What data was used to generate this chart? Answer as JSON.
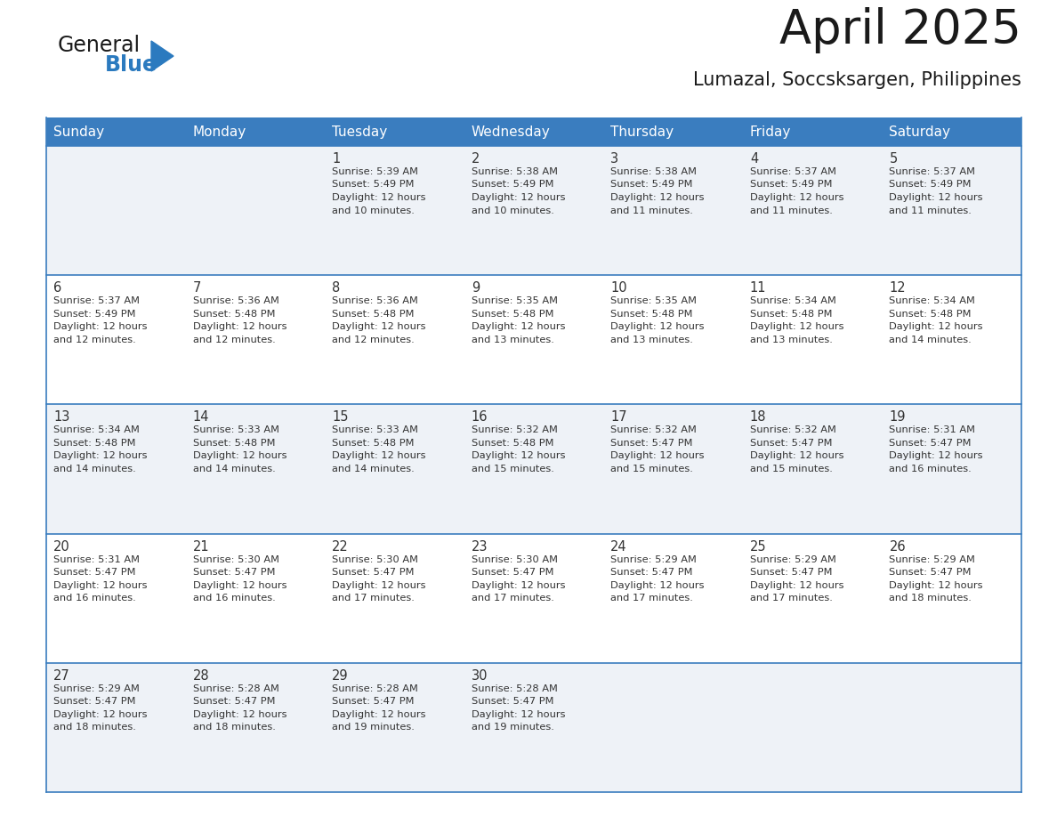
{
  "title": "April 2025",
  "subtitle": "Lumazal, Soccsksargen, Philippines",
  "header_bg": "#3a7dbf",
  "header_text": "#ffffff",
  "row_bg_odd": "#eef2f7",
  "row_bg_even": "#ffffff",
  "row_line_color": "#3a7dbf",
  "text_color": "#333333",
  "days_of_week": [
    "Sunday",
    "Monday",
    "Tuesday",
    "Wednesday",
    "Thursday",
    "Friday",
    "Saturday"
  ],
  "logo_general_color": "#1a1a1a",
  "logo_blue_color": "#2b7abf",
  "calendar_data": [
    [
      {
        "day": "",
        "sunrise": "",
        "sunset": "",
        "daylight": ""
      },
      {
        "day": "",
        "sunrise": "",
        "sunset": "",
        "daylight": ""
      },
      {
        "day": "1",
        "sunrise": "5:39 AM",
        "sunset": "5:49 PM",
        "daylight": "12 hours and 10 minutes."
      },
      {
        "day": "2",
        "sunrise": "5:38 AM",
        "sunset": "5:49 PM",
        "daylight": "12 hours and 10 minutes."
      },
      {
        "day": "3",
        "sunrise": "5:38 AM",
        "sunset": "5:49 PM",
        "daylight": "12 hours and 11 minutes."
      },
      {
        "day": "4",
        "sunrise": "5:37 AM",
        "sunset": "5:49 PM",
        "daylight": "12 hours and 11 minutes."
      },
      {
        "day": "5",
        "sunrise": "5:37 AM",
        "sunset": "5:49 PM",
        "daylight": "12 hours and 11 minutes."
      }
    ],
    [
      {
        "day": "6",
        "sunrise": "5:37 AM",
        "sunset": "5:49 PM",
        "daylight": "12 hours and 12 minutes."
      },
      {
        "day": "7",
        "sunrise": "5:36 AM",
        "sunset": "5:48 PM",
        "daylight": "12 hours and 12 minutes."
      },
      {
        "day": "8",
        "sunrise": "5:36 AM",
        "sunset": "5:48 PM",
        "daylight": "12 hours and 12 minutes."
      },
      {
        "day": "9",
        "sunrise": "5:35 AM",
        "sunset": "5:48 PM",
        "daylight": "12 hours and 13 minutes."
      },
      {
        "day": "10",
        "sunrise": "5:35 AM",
        "sunset": "5:48 PM",
        "daylight": "12 hours and 13 minutes."
      },
      {
        "day": "11",
        "sunrise": "5:34 AM",
        "sunset": "5:48 PM",
        "daylight": "12 hours and 13 minutes."
      },
      {
        "day": "12",
        "sunrise": "5:34 AM",
        "sunset": "5:48 PM",
        "daylight": "12 hours and 14 minutes."
      }
    ],
    [
      {
        "day": "13",
        "sunrise": "5:34 AM",
        "sunset": "5:48 PM",
        "daylight": "12 hours and 14 minutes."
      },
      {
        "day": "14",
        "sunrise": "5:33 AM",
        "sunset": "5:48 PM",
        "daylight": "12 hours and 14 minutes."
      },
      {
        "day": "15",
        "sunrise": "5:33 AM",
        "sunset": "5:48 PM",
        "daylight": "12 hours and 14 minutes."
      },
      {
        "day": "16",
        "sunrise": "5:32 AM",
        "sunset": "5:48 PM",
        "daylight": "12 hours and 15 minutes."
      },
      {
        "day": "17",
        "sunrise": "5:32 AM",
        "sunset": "5:47 PM",
        "daylight": "12 hours and 15 minutes."
      },
      {
        "day": "18",
        "sunrise": "5:32 AM",
        "sunset": "5:47 PM",
        "daylight": "12 hours and 15 minutes."
      },
      {
        "day": "19",
        "sunrise": "5:31 AM",
        "sunset": "5:47 PM",
        "daylight": "12 hours and 16 minutes."
      }
    ],
    [
      {
        "day": "20",
        "sunrise": "5:31 AM",
        "sunset": "5:47 PM",
        "daylight": "12 hours and 16 minutes."
      },
      {
        "day": "21",
        "sunrise": "5:30 AM",
        "sunset": "5:47 PM",
        "daylight": "12 hours and 16 minutes."
      },
      {
        "day": "22",
        "sunrise": "5:30 AM",
        "sunset": "5:47 PM",
        "daylight": "12 hours and 17 minutes."
      },
      {
        "day": "23",
        "sunrise": "5:30 AM",
        "sunset": "5:47 PM",
        "daylight": "12 hours and 17 minutes."
      },
      {
        "day": "24",
        "sunrise": "5:29 AM",
        "sunset": "5:47 PM",
        "daylight": "12 hours and 17 minutes."
      },
      {
        "day": "25",
        "sunrise": "5:29 AM",
        "sunset": "5:47 PM",
        "daylight": "12 hours and 17 minutes."
      },
      {
        "day": "26",
        "sunrise": "5:29 AM",
        "sunset": "5:47 PM",
        "daylight": "12 hours and 18 minutes."
      }
    ],
    [
      {
        "day": "27",
        "sunrise": "5:29 AM",
        "sunset": "5:47 PM",
        "daylight": "12 hours and 18 minutes."
      },
      {
        "day": "28",
        "sunrise": "5:28 AM",
        "sunset": "5:47 PM",
        "daylight": "12 hours and 18 minutes."
      },
      {
        "day": "29",
        "sunrise": "5:28 AM",
        "sunset": "5:47 PM",
        "daylight": "12 hours and 19 minutes."
      },
      {
        "day": "30",
        "sunrise": "5:28 AM",
        "sunset": "5:47 PM",
        "daylight": "12 hours and 19 minutes."
      },
      {
        "day": "",
        "sunrise": "",
        "sunset": "",
        "daylight": ""
      },
      {
        "day": "",
        "sunrise": "",
        "sunset": "",
        "daylight": ""
      },
      {
        "day": "",
        "sunrise": "",
        "sunset": "",
        "daylight": ""
      }
    ]
  ]
}
